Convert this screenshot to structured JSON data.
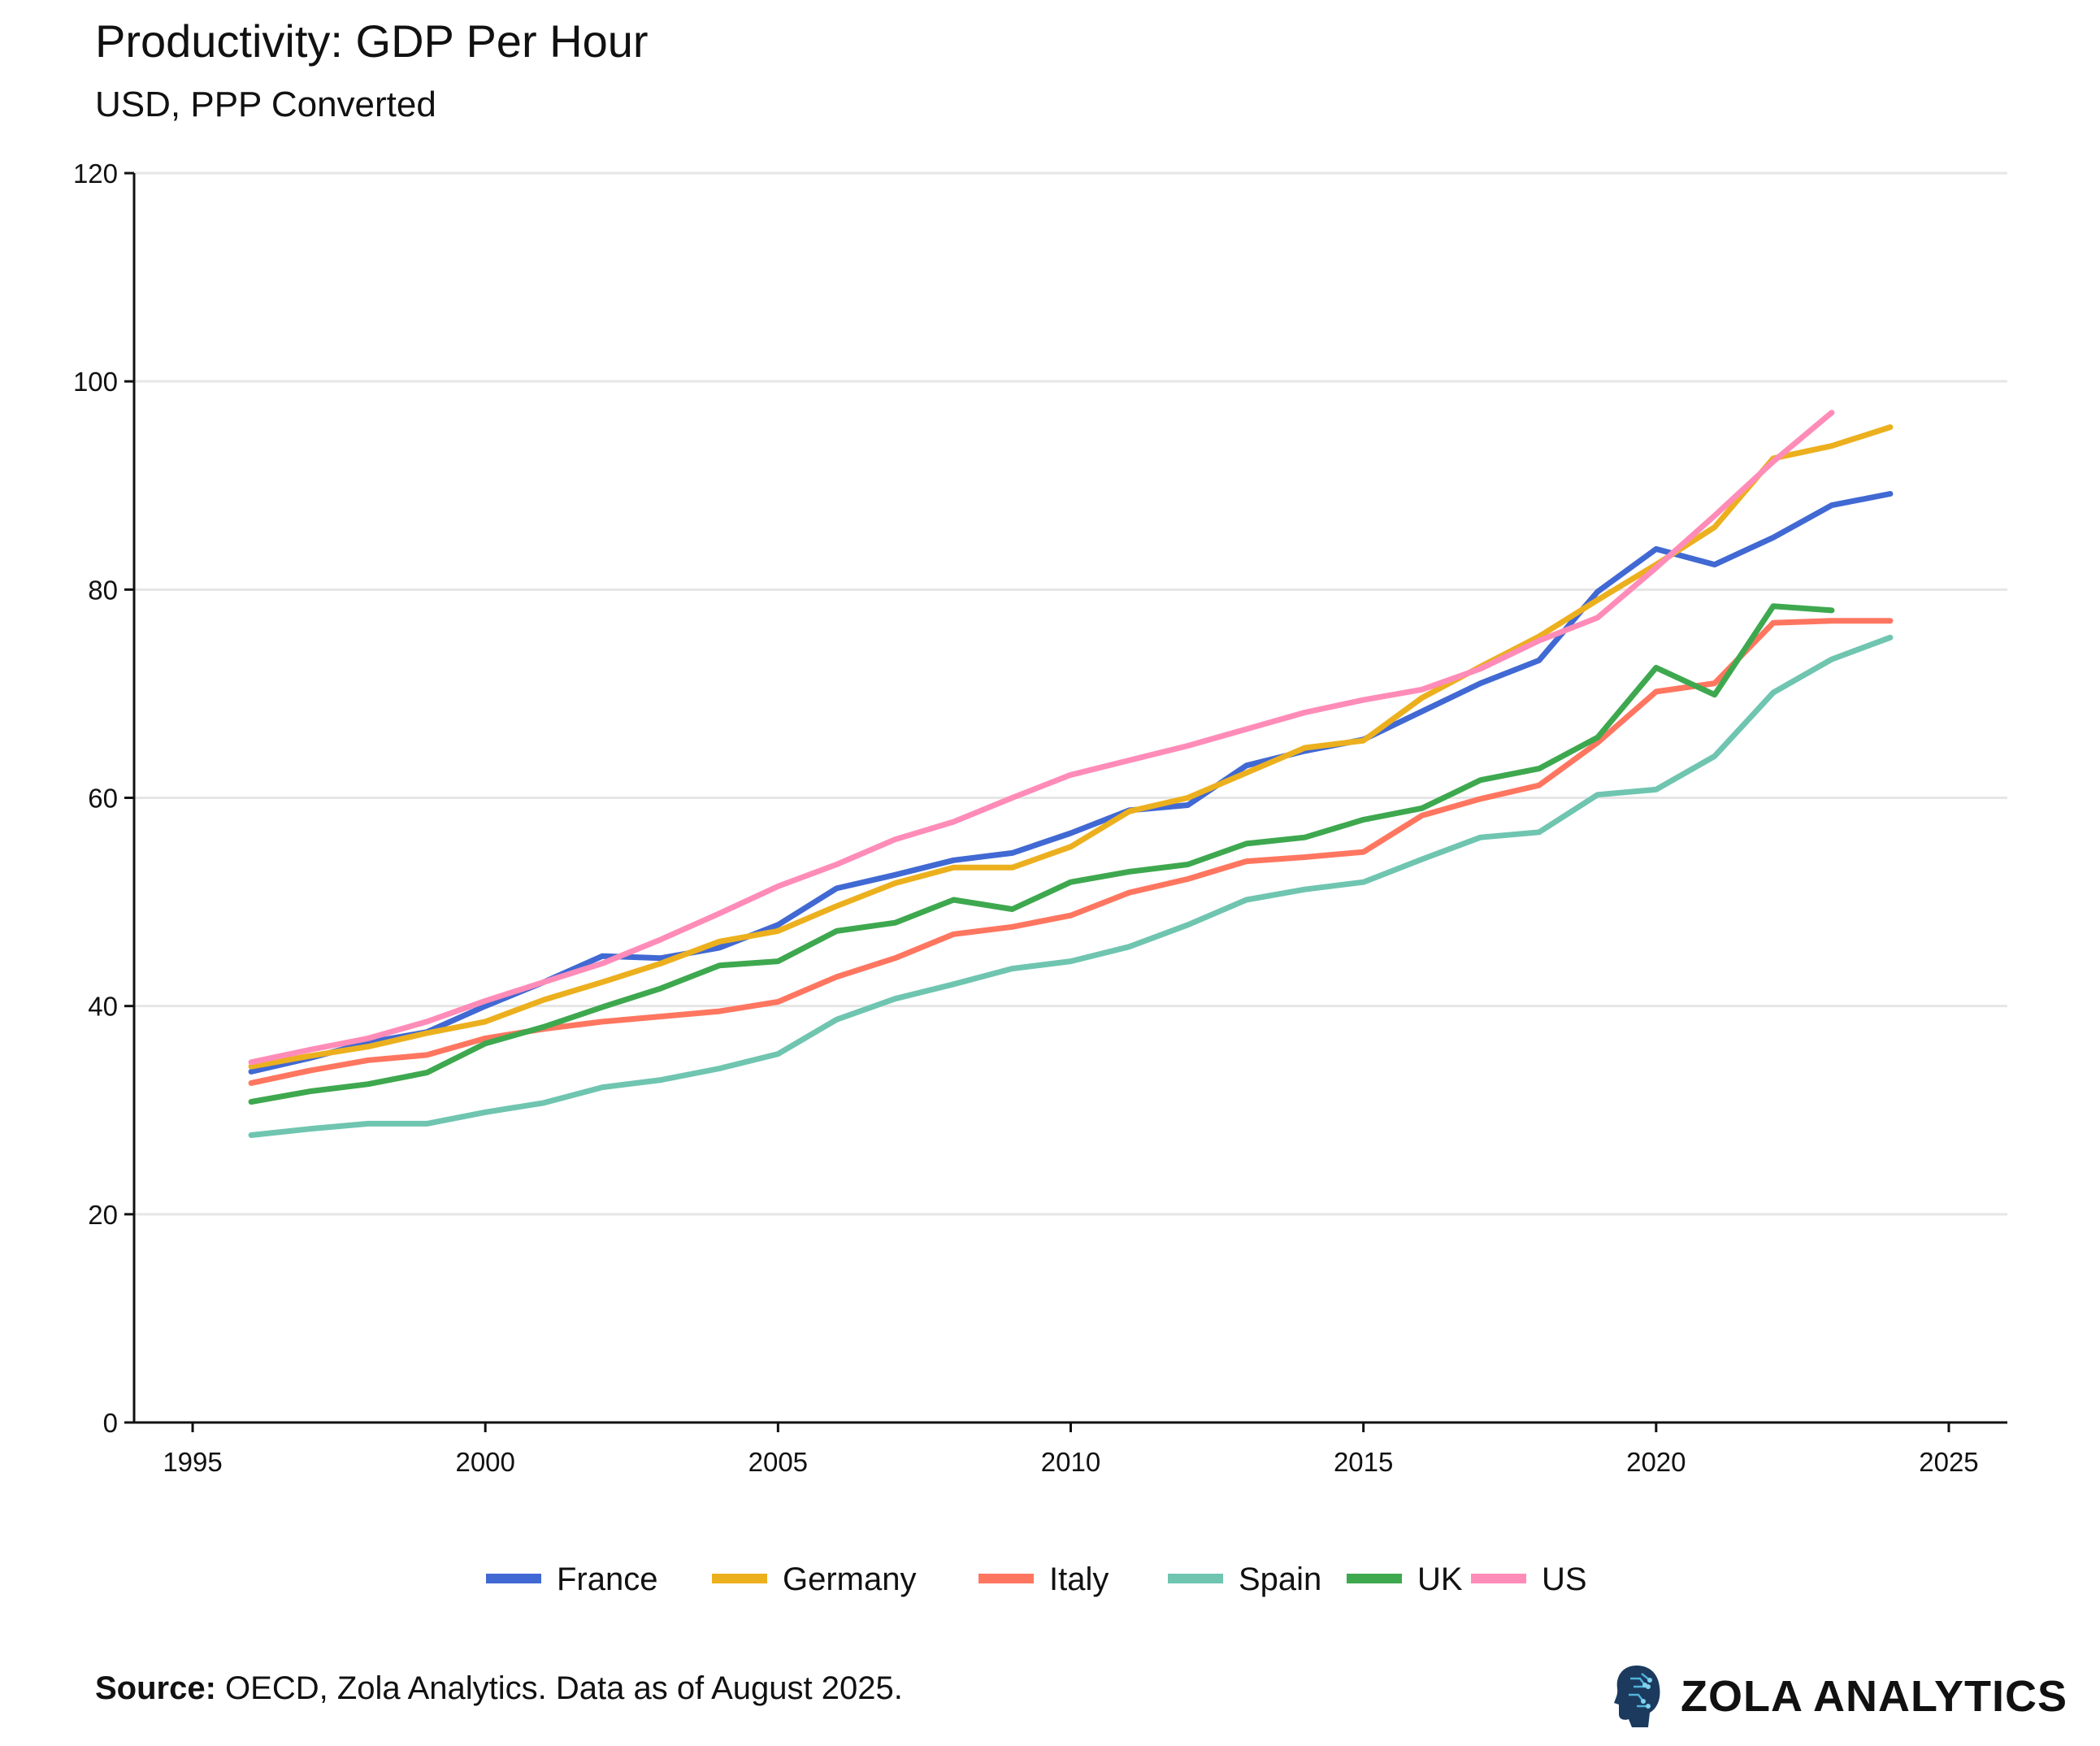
{
  "chart_data": {
    "type": "line",
    "title": "Productivity: GDP Per Hour",
    "subtitle": "USD, PPP Converted",
    "xlabel": "",
    "ylabel": "",
    "xlim": [
      1994,
      2026
    ],
    "ylim": [
      0,
      120
    ],
    "x_ticks": [
      1995,
      2000,
      2005,
      2010,
      2015,
      2020,
      2025
    ],
    "y_ticks": [
      0,
      20,
      40,
      60,
      80,
      100,
      120
    ],
    "grid": "horizontal",
    "legend_position": "bottom",
    "x": [
      1996,
      1997,
      1998,
      1999,
      2000,
      2001,
      2002,
      2003,
      2004,
      2005,
      2006,
      2007,
      2008,
      2009,
      2010,
      2011,
      2012,
      2013,
      2014,
      2015,
      2016,
      2017,
      2018,
      2019,
      2020,
      2021,
      2022,
      2023,
      2024
    ],
    "series": [
      {
        "name": "France",
        "color": "#4169d3",
        "values": [
          33.7,
          35.0,
          36.5,
          37.5,
          40.0,
          42.3,
          44.8,
          44.6,
          45.6,
          47.8,
          51.3,
          52.6,
          54.0,
          54.7,
          56.6,
          58.8,
          59.3,
          63.1,
          64.5,
          65.6,
          68.3,
          71.0,
          73.2,
          79.8,
          83.9,
          82.4,
          85.0,
          88.1,
          89.2
        ]
      },
      {
        "name": "Germany",
        "color": "#ecb01e",
        "values": [
          34.2,
          35.2,
          36.1,
          37.4,
          38.5,
          40.6,
          42.3,
          44.1,
          46.2,
          47.2,
          49.6,
          51.8,
          53.3,
          53.3,
          55.3,
          58.7,
          60.0,
          62.4,
          64.8,
          65.5,
          69.6,
          72.6,
          75.5,
          79.0,
          82.4,
          86.0,
          92.6,
          93.8,
          95.6
        ]
      },
      {
        "name": "Italy",
        "color": "#ff7660",
        "values": [
          32.6,
          33.8,
          34.8,
          35.3,
          36.9,
          37.8,
          38.5,
          39.0,
          39.5,
          40.4,
          42.8,
          44.6,
          46.9,
          47.6,
          48.7,
          50.9,
          52.2,
          53.9,
          54.3,
          54.8,
          58.3,
          59.9,
          61.2,
          65.3,
          70.2,
          71.0,
          76.8,
          77.0,
          77.0
        ]
      },
      {
        "name": "Spain",
        "color": "#6fc5b0",
        "values": [
          27.6,
          28.2,
          28.7,
          28.7,
          29.8,
          30.7,
          32.2,
          32.9,
          34.0,
          35.4,
          38.7,
          40.7,
          42.1,
          43.6,
          44.3,
          45.7,
          47.8,
          50.2,
          51.2,
          51.9,
          54.1,
          56.2,
          56.7,
          60.3,
          60.8,
          64.0,
          70.1,
          73.3,
          75.4
        ]
      },
      {
        "name": "UK",
        "color": "#3ea84f",
        "values": [
          30.8,
          31.8,
          32.5,
          33.6,
          36.4,
          38.0,
          39.9,
          41.7,
          43.9,
          44.3,
          47.2,
          48.0,
          50.2,
          49.3,
          51.9,
          52.9,
          53.6,
          55.6,
          56.2,
          57.9,
          59.0,
          61.7,
          62.8,
          65.8,
          72.5,
          69.9,
          78.4,
          78.0,
          null
        ]
      },
      {
        "name": "US",
        "color": "#ff8cb8",
        "values": [
          34.6,
          35.8,
          36.9,
          38.5,
          40.5,
          42.3,
          44.1,
          46.4,
          48.9,
          51.5,
          53.6,
          56.0,
          57.7,
          60.0,
          62.2,
          63.6,
          65.0,
          66.6,
          68.2,
          69.4,
          70.4,
          72.4,
          75.1,
          77.3,
          82.1,
          87.1,
          92.3,
          97.0,
          null
        ]
      }
    ]
  },
  "footer": {
    "source_label": "Source:",
    "source_text": " OECD, Zola Analytics. Data as of August 2025.",
    "brand": "ZOLA ANALYTICS"
  }
}
